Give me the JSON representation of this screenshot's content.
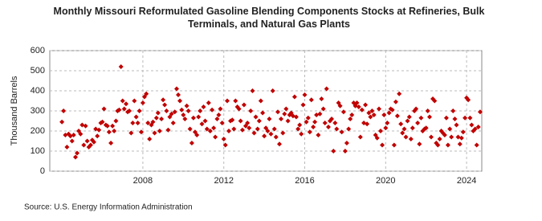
{
  "chart_data": {
    "type": "scatter",
    "title": "Monthly Missouri Reformulated Gasoline Blending Components Stocks at Refineries, Bulk Terminals, and Natural Gas Plants",
    "y_label": "Thousand Barrels",
    "source": "Source: U.S. Energy Information Administration",
    "color": "#c00000",
    "grid": true,
    "xlim": [
      2003.4,
      2024.75
    ],
    "xticks": [
      2008,
      2012,
      2016,
      2020,
      2024
    ],
    "ylim": [
      0,
      600
    ],
    "yticks": [
      0,
      100,
      200,
      300,
      400,
      500,
      600
    ],
    "x": [
      2004.0,
      2004.08,
      2004.17,
      2004.25,
      2004.33,
      2004.42,
      2004.5,
      2004.58,
      2004.67,
      2004.75,
      2004.83,
      2004.92,
      2005.0,
      2005.08,
      2005.17,
      2005.25,
      2005.33,
      2005.42,
      2005.5,
      2005.58,
      2005.67,
      2005.75,
      2005.83,
      2005.92,
      2006.0,
      2006.08,
      2006.17,
      2006.25,
      2006.33,
      2006.42,
      2006.5,
      2006.58,
      2006.67,
      2006.75,
      2006.83,
      2006.92,
      2007.0,
      2007.08,
      2007.17,
      2007.25,
      2007.33,
      2007.42,
      2007.5,
      2007.58,
      2007.67,
      2007.75,
      2007.83,
      2007.92,
      2008.0,
      2008.08,
      2008.17,
      2008.25,
      2008.33,
      2008.42,
      2008.5,
      2008.58,
      2008.67,
      2008.75,
      2008.83,
      2008.92,
      2009.0,
      2009.08,
      2009.17,
      2009.25,
      2009.33,
      2009.42,
      2009.5,
      2009.58,
      2009.67,
      2009.75,
      2009.83,
      2009.92,
      2010.0,
      2010.08,
      2010.17,
      2010.25,
      2010.33,
      2010.42,
      2010.5,
      2010.58,
      2010.67,
      2010.75,
      2010.83,
      2010.92,
      2011.0,
      2011.08,
      2011.17,
      2011.25,
      2011.33,
      2011.42,
      2011.5,
      2011.58,
      2011.67,
      2011.75,
      2011.83,
      2011.92,
      2012.0,
      2012.08,
      2012.17,
      2012.25,
      2012.33,
      2012.42,
      2012.5,
      2012.58,
      2012.67,
      2012.75,
      2012.83,
      2012.92,
      2013.0,
      2013.08,
      2013.17,
      2013.25,
      2013.33,
      2013.42,
      2013.5,
      2013.58,
      2013.67,
      2013.75,
      2013.83,
      2013.92,
      2014.0,
      2014.08,
      2014.17,
      2014.25,
      2014.33,
      2014.42,
      2014.5,
      2014.58,
      2014.67,
      2014.75,
      2014.83,
      2014.92,
      2015.0,
      2015.08,
      2015.17,
      2015.25,
      2015.33,
      2015.42,
      2015.5,
      2015.58,
      2015.67,
      2015.75,
      2015.83,
      2015.92,
      2016.0,
      2016.08,
      2016.17,
      2016.25,
      2016.33,
      2016.42,
      2016.5,
      2016.58,
      2016.67,
      2016.75,
      2016.83,
      2016.92,
      2017.0,
      2017.08,
      2017.17,
      2017.25,
      2017.33,
      2017.42,
      2017.5,
      2017.58,
      2017.67,
      2017.75,
      2017.83,
      2017.92,
      2018.0,
      2018.08,
      2018.17,
      2018.25,
      2018.33,
      2018.42,
      2018.5,
      2018.58,
      2018.67,
      2018.75,
      2018.83,
      2018.92,
      2019.0,
      2019.08,
      2019.17,
      2019.25,
      2019.33,
      2019.42,
      2019.5,
      2019.58,
      2019.67,
      2019.75,
      2019.83,
      2019.92,
      2020.0,
      2020.08,
      2020.17,
      2020.25,
      2020.33,
      2020.42,
      2020.5,
      2020.58,
      2020.67,
      2020.75,
      2020.83,
      2020.92,
      2021.0,
      2021.08,
      2021.17,
      2021.25,
      2021.33,
      2021.42,
      2021.5,
      2021.58,
      2021.67,
      2021.75,
      2021.83,
      2021.92,
      2022.0,
      2022.08,
      2022.17,
      2022.25,
      2022.33,
      2022.42,
      2022.5,
      2022.58,
      2022.67,
      2022.75,
      2022.83,
      2022.92,
      2023.0,
      2023.08,
      2023.17,
      2023.25,
      2023.33,
      2023.42,
      2023.5,
      2023.58,
      2023.67,
      2023.75,
      2023.83,
      2023.92,
      2024.0,
      2024.08,
      2024.17,
      2024.25,
      2024.33,
      2024.42,
      2024.5,
      2024.58,
      2024.67
    ],
    "values": [
      245,
      300,
      180,
      120,
      185,
      175,
      150,
      180,
      70,
      90,
      200,
      185,
      230,
      130,
      225,
      150,
      120,
      130,
      155,
      145,
      210,
      175,
      205,
      240,
      245,
      310,
      230,
      225,
      195,
      140,
      225,
      200,
      250,
      300,
      305,
      520,
      350,
      310,
      335,
      295,
      300,
      190,
      240,
      350,
      270,
      240,
      300,
      195,
      340,
      370,
      385,
      240,
      160,
      230,
      245,
      190,
      265,
      290,
      200,
      260,
      355,
      330,
      300,
      205,
      270,
      285,
      240,
      295,
      410,
      380,
      350,
      305,
      280,
      260,
      325,
      300,
      210,
      140,
      265,
      195,
      180,
      270,
      300,
      235,
      320,
      250,
      210,
      340,
      200,
      305,
      215,
      170,
      260,
      280,
      310,
      240,
      160,
      130,
      350,
      200,
      250,
      255,
      210,
      350,
      320,
      310,
      250,
      205,
      330,
      225,
      240,
      215,
      300,
      400,
      190,
      270,
      210,
      250,
      350,
      290,
      175,
      215,
      200,
      260,
      185,
      400,
      210,
      170,
      295,
      135,
      260,
      190,
      285,
      310,
      250,
      280,
      290,
      275,
      370,
      270,
      210,
      230,
      185,
      330,
      380,
      245,
      265,
      195,
      355,
      220,
      245,
      280,
      180,
      285,
      360,
      310,
      240,
      410,
      220,
      250,
      260,
      100,
      240,
      210,
      340,
      325,
      195,
      295,
      100,
      140,
      210,
      260,
      280,
      340,
      325,
      340,
      320,
      170,
      305,
      240,
      330,
      235,
      290,
      270,
      300,
      280,
      180,
      165,
      310,
      200,
      130,
      280,
      215,
      240,
      290,
      310,
      305,
      130,
      345,
      275,
      385,
      235,
      190,
      210,
      170,
      250,
      270,
      160,
      215,
      300,
      310,
      240,
      135,
      265,
      200,
      210,
      215,
      300,
      270,
      170,
      360,
      350,
      140,
      130,
      160,
      200,
      190,
      180,
      265,
      130,
      210,
      170,
      300,
      260,
      230,
      170,
      135,
      165,
      195,
      265,
      365,
      355,
      265,
      230,
      200,
      210,
      130,
      220,
      295
    ]
  }
}
